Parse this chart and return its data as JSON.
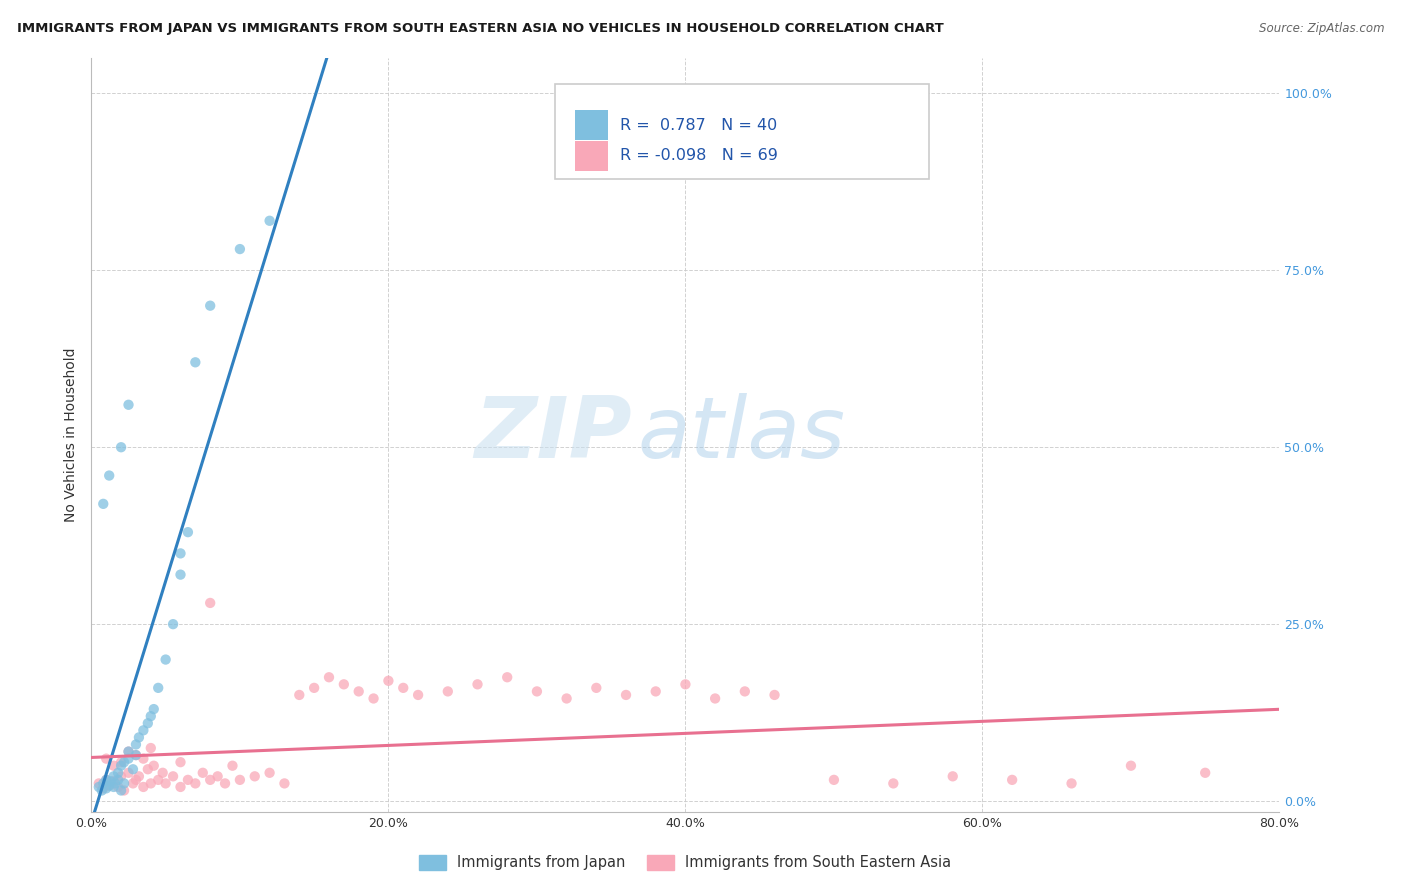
{
  "title": "IMMIGRANTS FROM JAPAN VS IMMIGRANTS FROM SOUTH EASTERN ASIA NO VEHICLES IN HOUSEHOLD CORRELATION CHART",
  "source": "Source: ZipAtlas.com",
  "ylabel": "No Vehicles in Household",
  "legend_label_1": "Immigrants from Japan",
  "legend_label_2": "Immigrants from South Eastern Asia",
  "r1": "0.787",
  "n1": "40",
  "r2": "-0.098",
  "n2": "69",
  "color_japan": "#7fbfdf",
  "color_sea": "#f9a8b8",
  "color_japan_line": "#3080c0",
  "color_sea_line": "#e87090",
  "watermark_zip": "ZIP",
  "watermark_atlas": "atlas",
  "x_min": 0.0,
  "x_max": 0.8,
  "y_min": -0.015,
  "y_max": 1.05,
  "x_ticks": [
    0.0,
    0.2,
    0.4,
    0.6,
    0.8
  ],
  "x_tick_labels": [
    "0.0%",
    "20.0%",
    "40.0%",
    "60.0%",
    "80.0%"
  ],
  "y_ticks": [
    0.0,
    0.25,
    0.5,
    0.75,
    1.0
  ],
  "y_tick_labels_right": [
    "0.0%",
    "25.0%",
    "50.0%",
    "75.0%",
    "100.0%"
  ],
  "japan_x": [
    0.005,
    0.007,
    0.008,
    0.01,
    0.01,
    0.012,
    0.013,
    0.015,
    0.015,
    0.016,
    0.018,
    0.018,
    0.02,
    0.02,
    0.022,
    0.022,
    0.025,
    0.025,
    0.028,
    0.03,
    0.03,
    0.032,
    0.035,
    0.038,
    0.04,
    0.042,
    0.045,
    0.05,
    0.055,
    0.06,
    0.008,
    0.012,
    0.02,
    0.025,
    0.06,
    0.065,
    0.07,
    0.08,
    0.1,
    0.12
  ],
  "japan_y": [
    0.02,
    0.015,
    0.025,
    0.018,
    0.03,
    0.022,
    0.028,
    0.02,
    0.035,
    0.025,
    0.03,
    0.04,
    0.015,
    0.05,
    0.025,
    0.055,
    0.06,
    0.07,
    0.045,
    0.065,
    0.08,
    0.09,
    0.1,
    0.11,
    0.12,
    0.13,
    0.16,
    0.2,
    0.25,
    0.32,
    0.42,
    0.46,
    0.5,
    0.56,
    0.35,
    0.38,
    0.62,
    0.7,
    0.78,
    0.82
  ],
  "sea_x": [
    0.005,
    0.008,
    0.01,
    0.012,
    0.015,
    0.018,
    0.02,
    0.022,
    0.025,
    0.028,
    0.03,
    0.032,
    0.035,
    0.038,
    0.04,
    0.042,
    0.045,
    0.048,
    0.05,
    0.055,
    0.06,
    0.065,
    0.07,
    0.075,
    0.08,
    0.085,
    0.09,
    0.095,
    0.1,
    0.11,
    0.12,
    0.13,
    0.14,
    0.15,
    0.16,
    0.17,
    0.18,
    0.19,
    0.2,
    0.21,
    0.22,
    0.24,
    0.26,
    0.28,
    0.3,
    0.32,
    0.34,
    0.36,
    0.38,
    0.4,
    0.42,
    0.44,
    0.46,
    0.5,
    0.54,
    0.58,
    0.62,
    0.66,
    0.7,
    0.75,
    0.01,
    0.015,
    0.02,
    0.025,
    0.03,
    0.035,
    0.04,
    0.06,
    0.08
  ],
  "sea_y": [
    0.025,
    0.018,
    0.03,
    0.022,
    0.028,
    0.02,
    0.035,
    0.015,
    0.04,
    0.025,
    0.03,
    0.035,
    0.02,
    0.045,
    0.025,
    0.05,
    0.03,
    0.04,
    0.025,
    0.035,
    0.02,
    0.03,
    0.025,
    0.04,
    0.03,
    0.035,
    0.025,
    0.05,
    0.03,
    0.035,
    0.04,
    0.025,
    0.15,
    0.16,
    0.175,
    0.165,
    0.155,
    0.145,
    0.17,
    0.16,
    0.15,
    0.155,
    0.165,
    0.175,
    0.155,
    0.145,
    0.16,
    0.15,
    0.155,
    0.165,
    0.145,
    0.155,
    0.15,
    0.03,
    0.025,
    0.035,
    0.03,
    0.025,
    0.05,
    0.04,
    0.06,
    0.05,
    0.055,
    0.07,
    0.065,
    0.06,
    0.075,
    0.055,
    0.28
  ]
}
